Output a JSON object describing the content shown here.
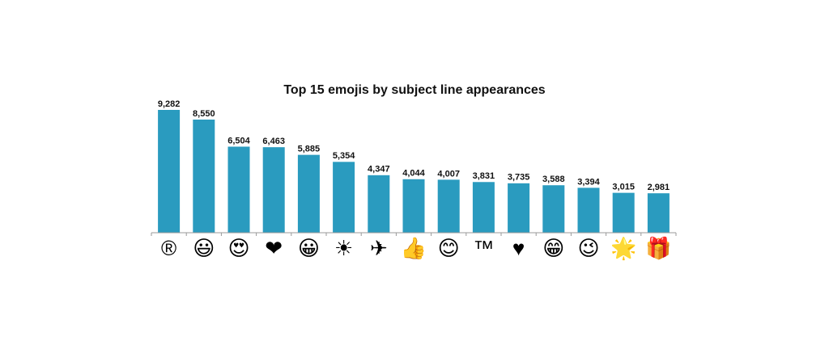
{
  "chart_data": {
    "type": "bar",
    "title": "Top 15 emojis by subject line appearances",
    "categories": [
      "®",
      "😃",
      "😍",
      "❤",
      "😀",
      "☀",
      "✈",
      "👍",
      "😊",
      "™",
      "♥",
      "😁",
      "😉",
      "🌟",
      "🎁"
    ],
    "values": [
      9282,
      8550,
      6504,
      6463,
      5885,
      5354,
      4347,
      4044,
      4007,
      3831,
      3735,
      3588,
      3394,
      3015,
      2981
    ],
    "value_labels": [
      "9,282",
      "8,550",
      "6,504",
      "6,463",
      "5,885",
      "5,354",
      "4,347",
      "4,044",
      "4,007",
      "3,831",
      "3,735",
      "3,588",
      "3,394",
      "3,015",
      "2,981"
    ],
    "color": "#2a9bbf"
  }
}
